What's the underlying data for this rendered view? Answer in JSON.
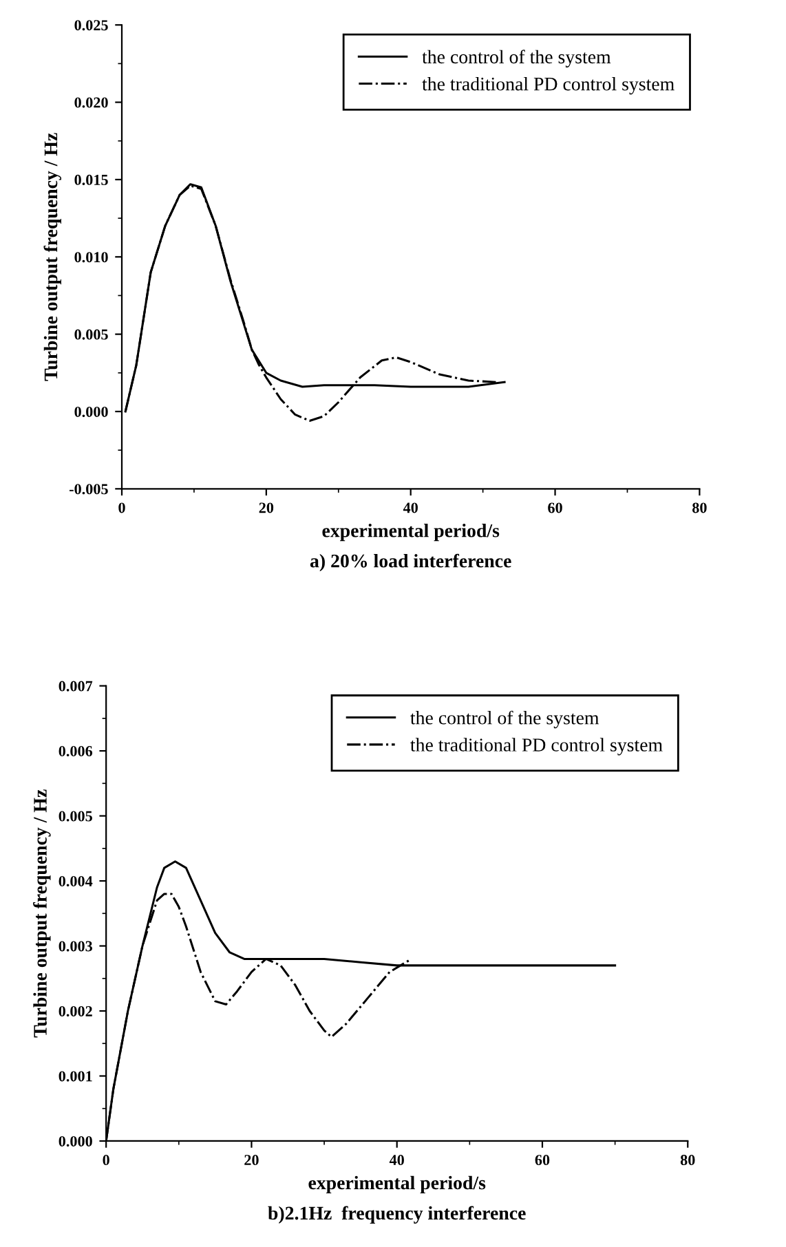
{
  "chart_data": [
    {
      "type": "line",
      "xlabel": "experimental period/s",
      "ylabel": "Turbine output frequency / Hz",
      "annotations": [
        "a) 20% load interference"
      ],
      "xlim": [
        0,
        80
      ],
      "ylim": [
        -0.005,
        0.025
      ],
      "xticks": [
        0,
        20,
        40,
        60,
        80
      ],
      "yticks": [
        {
          "value": -0.005,
          "label": "-0.005"
        },
        {
          "value": 0,
          "label": "0.000"
        },
        {
          "value": 0.005,
          "label": "0.005"
        },
        {
          "value": 0.01,
          "label": "0.010"
        },
        {
          "value": 0.015,
          "label": "0.015"
        },
        {
          "value": 0.02,
          "label": "0.020"
        },
        {
          "value": 0.025,
          "label": "0.025"
        }
      ],
      "grid": false,
      "legend": "top right",
      "marker": "none",
      "series": [
        {
          "name": "the control of the system",
          "color": "#000000",
          "line_style": "solid",
          "x": [
            0.5,
            2,
            4,
            6,
            8,
            9.5,
            11,
            13,
            15,
            17,
            18,
            20,
            22,
            25,
            28,
            35,
            40,
            48,
            53
          ],
          "values": [
            0.0,
            0.003,
            0.009,
            0.012,
            0.014,
            0.0147,
            0.0145,
            0.012,
            0.0085,
            0.0055,
            0.004,
            0.0025,
            0.002,
            0.0016,
            0.0017,
            0.0017,
            0.0016,
            0.0016,
            0.0019
          ]
        },
        {
          "name": "the traditional PD control system",
          "color": "#000000",
          "line_style": "dashdot",
          "x": [
            0.5,
            2,
            4,
            6,
            8,
            9.5,
            11,
            13,
            15,
            17,
            18,
            19,
            20,
            22,
            24,
            26,
            28,
            30,
            33,
            36,
            38,
            40,
            44,
            48,
            52
          ],
          "values": [
            0.0,
            0.003,
            0.009,
            0.012,
            0.014,
            0.0146,
            0.0144,
            0.012,
            0.0086,
            0.0056,
            0.004,
            0.003,
            0.0022,
            0.0008,
            -0.0002,
            -0.0006,
            -0.0003,
            0.0006,
            0.0022,
            0.0033,
            0.0035,
            0.0032,
            0.0024,
            0.002,
            0.0019
          ]
        }
      ]
    },
    {
      "type": "line",
      "xlabel": "experimental period/s",
      "ylabel": "Turbine output frequency / Hz",
      "annotations": [
        "b)2.1Hz  frequency interference"
      ],
      "xlim": [
        0,
        80
      ],
      "ylim": [
        0,
        0.007
      ],
      "xticks": [
        0,
        20,
        40,
        60,
        80
      ],
      "yticks": [
        {
          "value": 0,
          "label": "0.000"
        },
        {
          "value": 0.001,
          "label": "0.001"
        },
        {
          "value": 0.002,
          "label": "0.002"
        },
        {
          "value": 0.003,
          "label": "0.003"
        },
        {
          "value": 0.004,
          "label": "0.004"
        },
        {
          "value": 0.005,
          "label": "0.005"
        },
        {
          "value": 0.006,
          "label": "0.006"
        },
        {
          "value": 0.007,
          "label": "0.007"
        }
      ],
      "grid": false,
      "legend": "top right",
      "marker": "none",
      "series": [
        {
          "name": "the control of the system",
          "color": "#000000",
          "line_style": "solid",
          "x": [
            0,
            1,
            3,
            5,
            7,
            8,
            9.5,
            11,
            13,
            15,
            17,
            19,
            25,
            30,
            35,
            40,
            50,
            60,
            70
          ],
          "values": [
            0,
            0.0008,
            0.002,
            0.003,
            0.0039,
            0.0042,
            0.0043,
            0.0042,
            0.0037,
            0.0032,
            0.0029,
            0.0028,
            0.0028,
            0.0028,
            0.00275,
            0.0027,
            0.0027,
            0.0027,
            0.0027
          ]
        },
        {
          "name": "the traditional PD control system",
          "color": "#000000",
          "line_style": "dashdot",
          "x": [
            0,
            1,
            3,
            5,
            7,
            8,
            9,
            10,
            11,
            13,
            15,
            16.5,
            18,
            20,
            22,
            24,
            26,
            28,
            30,
            31,
            33,
            36,
            39,
            42
          ],
          "values": [
            0,
            0.0008,
            0.002,
            0.003,
            0.0037,
            0.0038,
            0.0038,
            0.0036,
            0.0033,
            0.0026,
            0.00215,
            0.0021,
            0.0023,
            0.0026,
            0.0028,
            0.0027,
            0.0024,
            0.002,
            0.0017,
            0.0016,
            0.0018,
            0.0022,
            0.0026,
            0.0028
          ]
        }
      ]
    }
  ]
}
